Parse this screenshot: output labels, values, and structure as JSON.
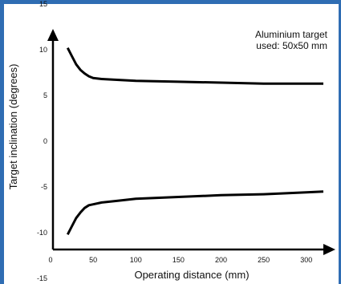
{
  "chart_data": {
    "type": "line",
    "xlabel": "Operating distance (mm)",
    "ylabel": "Target inclination (degrees)",
    "annotation": [
      "Aluminium target",
      "used: 50x50 mm"
    ],
    "xlim": [
      0,
      320
    ],
    "ylim": [
      -20,
      20
    ],
    "x_ticks": [
      0,
      50,
      100,
      150,
      200,
      250,
      300
    ],
    "y_ticks": [
      15,
      10,
      5,
      0,
      -5,
      -10,
      -15
    ],
    "grid": false,
    "series": [
      {
        "x": [
          20,
          25,
          30,
          35,
          40,
          45,
          50,
          60,
          80,
          100,
          150,
          200,
          250,
          300,
          320
        ],
        "y": [
          10.2,
          9.3,
          8.4,
          7.8,
          7.4,
          7.1,
          6.9,
          6.8,
          6.7,
          6.6,
          6.5,
          6.4,
          6.3,
          6.3,
          6.3
        ]
      },
      {
        "x": [
          20,
          25,
          30,
          35,
          40,
          45,
          50,
          60,
          80,
          100,
          150,
          200,
          250,
          300,
          320
        ],
        "y": [
          -10.2,
          -9.3,
          -8.4,
          -7.8,
          -7.3,
          -7.0,
          -6.9,
          -6.7,
          -6.5,
          -6.3,
          -6.1,
          -5.9,
          -5.8,
          -5.6,
          -5.5
        ]
      }
    ],
    "colors": {
      "frame": "#2f6db3",
      "line": "#000000"
    }
  }
}
